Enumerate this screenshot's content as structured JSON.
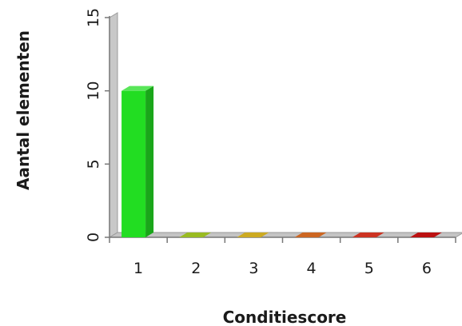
{
  "chart_data": {
    "type": "bar",
    "title": "",
    "xlabel": "Conditiescore",
    "ylabel": "Aantal elementen",
    "categories": [
      "1",
      "2",
      "3",
      "4",
      "5",
      "6"
    ],
    "y_ticks": [
      "0",
      "5",
      "10",
      "15"
    ],
    "ylim": [
      0,
      15
    ],
    "values": [
      10,
      0,
      0,
      0,
      0,
      0
    ],
    "bar_colors": [
      "#22dd22",
      "#99bb22",
      "#ccaa22",
      "#cc6622",
      "#cc3322",
      "#bb1111"
    ],
    "grid": false,
    "legend": "none",
    "three_d": true
  }
}
